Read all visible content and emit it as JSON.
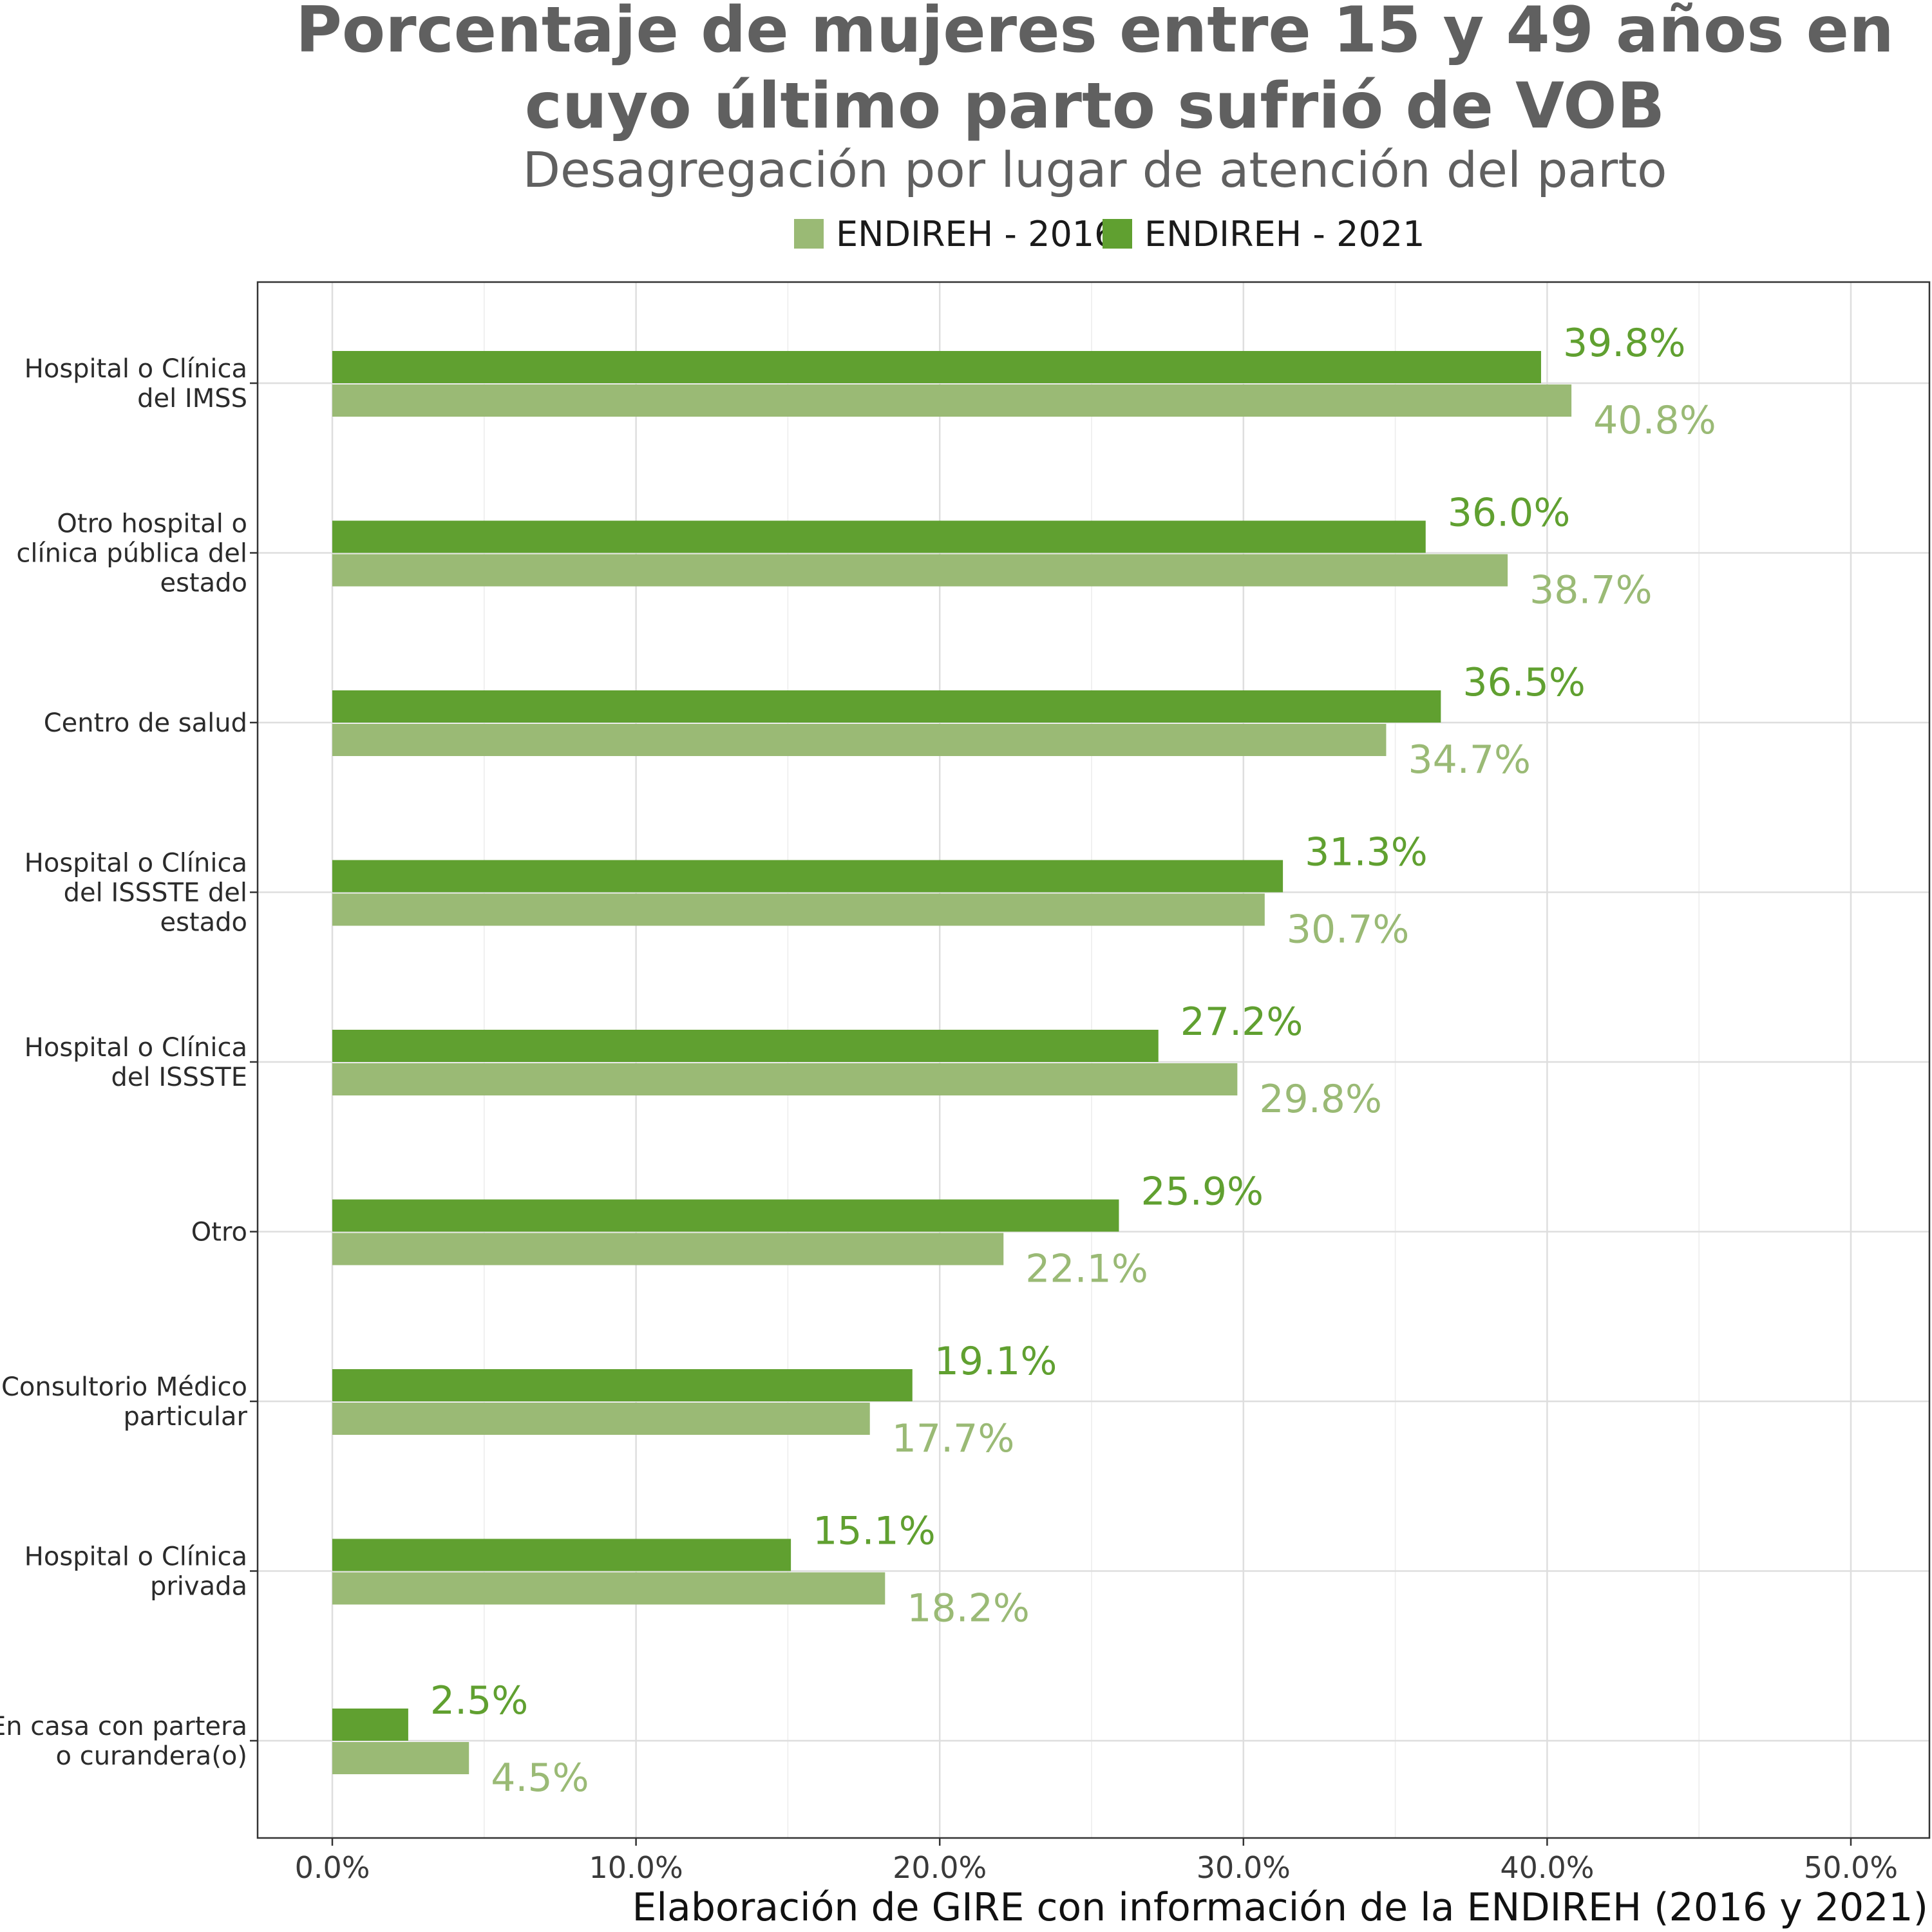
{
  "chart_data": {
    "type": "bar",
    "orientation": "horizontal",
    "title_line1": "Porcentaje de mujeres entre 15 y 49 años en",
    "title_line2": "cuyo último parto sufrió de VOB",
    "subtitle": "Desagregación por lugar de atención del parto",
    "caption": "Elaboración de GIRE con información de la ENDIREH (2016 y 2021)",
    "legend_position": "top",
    "grid": true,
    "xlim": [
      0,
      50
    ],
    "x_ticks": [
      {
        "value": 0,
        "label": "0.0%"
      },
      {
        "value": 10,
        "label": "10.0%"
      },
      {
        "value": 20,
        "label": "20.0%"
      },
      {
        "value": 30,
        "label": "30.0%"
      },
      {
        "value": 40,
        "label": "40.0%"
      },
      {
        "value": 50,
        "label": "50.0%"
      }
    ],
    "categories": [
      [
        "Hospital o Clínica",
        "del IMSS"
      ],
      [
        "Otro hospital o",
        "clínica pública del",
        "estado"
      ],
      [
        "Centro de salud"
      ],
      [
        "Hospital o Clínica",
        "del ISSSTE del",
        "estado"
      ],
      [
        "Hospital o Clínica",
        "del ISSSTE"
      ],
      [
        "Otro"
      ],
      [
        "Consultorio Médico",
        "particular"
      ],
      [
        "Hospital o Clínica",
        "privada"
      ],
      [
        "En casa con partera",
        "o curandera(o)"
      ]
    ],
    "series": [
      {
        "name": "ENDIREH - 2016",
        "color": "#9aba75",
        "values": [
          40.8,
          38.7,
          34.7,
          30.7,
          29.8,
          22.1,
          17.7,
          18.2,
          4.5
        ],
        "labels": [
          "40.8%",
          "38.7%",
          "34.7%",
          "30.7%",
          "29.8%",
          "22.1%",
          "17.7%",
          "18.2%",
          "4.5%"
        ]
      },
      {
        "name": "ENDIREH - 2021",
        "color": "#60a030",
        "values": [
          39.8,
          36.0,
          36.5,
          31.3,
          27.2,
          25.9,
          19.1,
          15.1,
          2.5
        ],
        "labels": [
          "39.8%",
          "36.0%",
          "36.5%",
          "31.3%",
          "27.2%",
          "25.9%",
          "19.1%",
          "15.1%",
          "2.5%"
        ]
      }
    ]
  }
}
